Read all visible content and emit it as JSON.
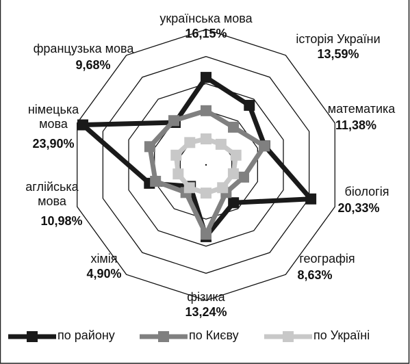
{
  "chart_data": {
    "type": "radar",
    "categories": [
      "українська мова",
      "історія України",
      "математика",
      "біологія",
      "географія",
      "фізика",
      "хімія",
      "аглійська мова",
      "німецька мова",
      "французька мова"
    ],
    "ylim": [
      0,
      25
    ],
    "yticks": [
      0,
      5,
      10,
      15,
      20,
      25
    ],
    "grid": true,
    "legend": "bottom",
    "series": [
      {
        "name": "по району",
        "color": "#1a1a1a",
        "values": [
          16.15,
          13.59,
          11.38,
          20.33,
          8.63,
          13.24,
          4.9,
          10.98,
          23.9,
          9.68
        ],
        "value_labels": [
          "16,15%",
          "13,59%",
          "11,38%",
          "20,33%",
          "8,63%",
          "13,24%",
          "4,90%",
          "10,98%",
          "23,90%",
          "9,68%"
        ]
      },
      {
        "name": "по Києву",
        "color": "#808080",
        "values": [
          10.0,
          8.6,
          11.3,
          7.3,
          6.3,
          12.8,
          6.3,
          9.8,
          10.9,
          10.1
        ]
      },
      {
        "name": "по Україні",
        "color": "#c8c8c8",
        "values": [
          4.8,
          4.7,
          5.8,
          5.3,
          5.2,
          5.2,
          5.2,
          5.4,
          5.8,
          5.1
        ]
      }
    ]
  }
}
